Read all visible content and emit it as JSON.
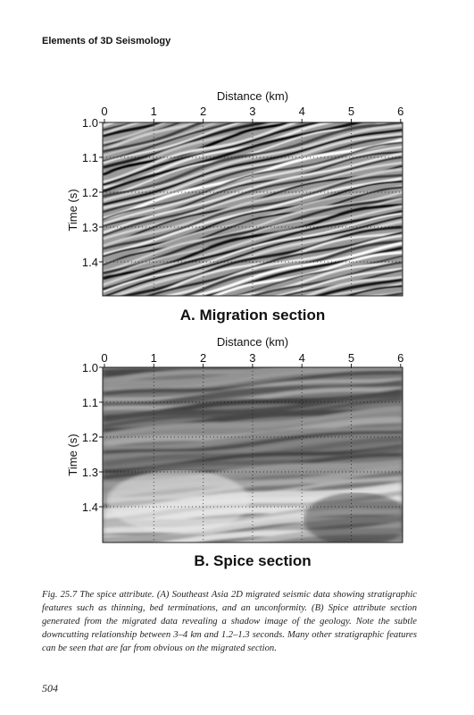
{
  "header": {
    "title": "Elements of 3D Seismology"
  },
  "figures": [
    {
      "x_label": "Distance (km)",
      "y_label": "Time (s)",
      "x_ticks": [
        "0",
        "1",
        "2",
        "3",
        "4",
        "5",
        "6"
      ],
      "y_ticks": [
        "1.0",
        "1.1",
        "1.2",
        "1.3",
        "1.4"
      ],
      "title": "A. Migration section"
    },
    {
      "x_label": "Distance (km)",
      "y_label": "Time (s)",
      "x_ticks": [
        "0",
        "1",
        "2",
        "3",
        "4",
        "5",
        "6"
      ],
      "y_ticks": [
        "1.0",
        "1.1",
        "1.2",
        "1.3",
        "1.4"
      ],
      "title": "B. Spice section"
    }
  ],
  "caption": "Fig. 25.7 The spice attribute. (A) Southeast Asia 2D migrated seismic data showing stratigraphic features such as thinning, bed terminations, and an unconformity. (B) Spice attribute section generated from the migrated data revealing a shadow image of the geology. Note the subtle downcutting relationship between 3–4 km and 1.2–1.3 seconds. Many other stratigraphic features can be seen that are far from obvious on the migrated section.",
  "page_number": "504"
}
